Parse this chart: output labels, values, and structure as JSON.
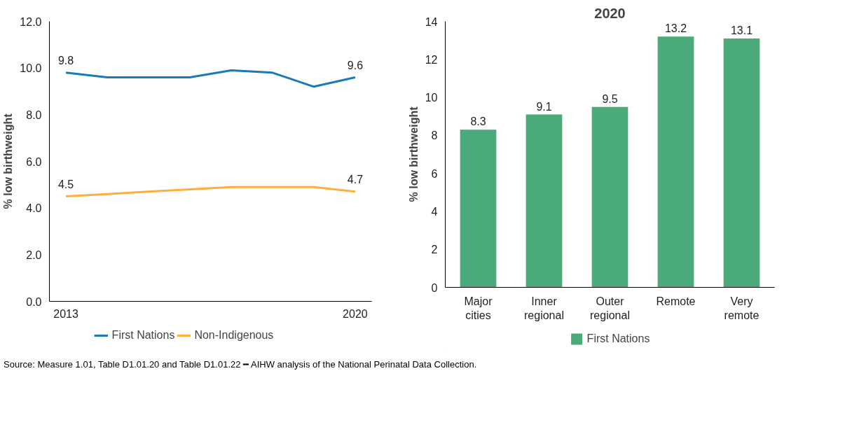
{
  "chart_data": [
    {
      "type": "line",
      "ylabel": "% low birthweight",
      "x": [
        2013,
        2014,
        2015,
        2016,
        2017,
        2018,
        2019,
        2020
      ],
      "xlim": [
        2012.6,
        2020.4
      ],
      "xticks": [
        2013,
        2020
      ],
      "ylim": [
        0,
        12
      ],
      "yticks": [
        {
          "value": 0,
          "label": "0.0"
        },
        {
          "value": 2,
          "label": "2.0"
        },
        {
          "value": 4,
          "label": "4.0"
        },
        {
          "value": 6,
          "label": "6.0"
        },
        {
          "value": 8,
          "label": "8.0"
        },
        {
          "value": 10,
          "label": "10.0"
        },
        {
          "value": 12,
          "label": "12.0"
        }
      ],
      "grid": false,
      "legend": "bottom",
      "marker": "none",
      "line_style": "solid",
      "series": [
        {
          "name": "First Nations",
          "color": "#1a7ab8",
          "values": [
            9.8,
            9.6,
            9.6,
            9.6,
            9.9,
            9.8,
            9.2,
            9.6
          ],
          "value_labels": [
            "9.8",
            null,
            null,
            null,
            null,
            null,
            null,
            "9.6"
          ]
        },
        {
          "name": "Non-Indigenous",
          "color": "#fbb040",
          "values": [
            4.5,
            4.6,
            4.7,
            4.8,
            4.9,
            4.9,
            4.9,
            4.7
          ],
          "value_labels": [
            "4.5",
            null,
            null,
            null,
            null,
            null,
            null,
            "4.7"
          ]
        }
      ],
      "annotations": [
        "Source: Measure 1.01, Table D1.01.20 and Table D1.01.22 ━ AIHW analysis of the National Perinatal Data Collection."
      ]
    },
    {
      "type": "bar",
      "title": "2020",
      "ylabel": "% low birthweight",
      "categories": [
        "Major cities",
        "Inner regional",
        "Outer regional",
        "Remote",
        "Very remote"
      ],
      "ylim": [
        0,
        14
      ],
      "yticks": [
        0,
        2,
        4,
        6,
        8,
        10,
        12,
        14
      ],
      "grid": false,
      "legend": "bottom",
      "data_labels": true,
      "series": [
        {
          "name": "First Nations",
          "color": "#4aaa7a",
          "values": [
            8.3,
            9.1,
            9.5,
            13.2,
            13.1
          ]
        }
      ]
    }
  ]
}
